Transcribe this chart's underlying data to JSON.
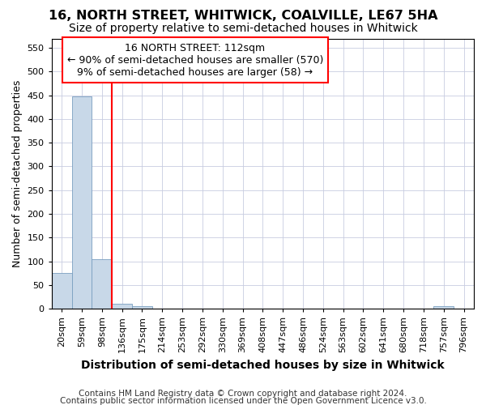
{
  "title": "16, NORTH STREET, WHITWICK, COALVILLE, LE67 5HA",
  "subtitle": "Size of property relative to semi-detached houses in Whitwick",
  "xlabel": "Distribution of semi-detached houses by size in Whitwick",
  "ylabel": "Number of semi-detached properties",
  "categories": [
    "20sqm",
    "59sqm",
    "98sqm",
    "136sqm",
    "175sqm",
    "214sqm",
    "253sqm",
    "292sqm",
    "330sqm",
    "369sqm",
    "408sqm",
    "447sqm",
    "486sqm",
    "524sqm",
    "563sqm",
    "602sqm",
    "641sqm",
    "680sqm",
    "718sqm",
    "757sqm",
    "796sqm"
  ],
  "bar_values": [
    75,
    447,
    105,
    10,
    5,
    0,
    0,
    0,
    0,
    0,
    0,
    0,
    0,
    0,
    0,
    0,
    0,
    0,
    0,
    5,
    0
  ],
  "bar_color": "#c8d8e8",
  "bar_edge_color": "#7a9fc0",
  "grid_color": "#c8cce0",
  "vline_x": 2.5,
  "vline_color": "red",
  "annotation_line1": "16 NORTH STREET: 112sqm",
  "annotation_line2": "← 90% of semi-detached houses are smaller (570)",
  "annotation_line3": "9% of semi-detached houses are larger (58) →",
  "annotation_box_color": "white",
  "annotation_box_edge": "red",
  "ylim": [
    0,
    570
  ],
  "yticks": [
    0,
    50,
    100,
    150,
    200,
    250,
    300,
    350,
    400,
    450,
    500,
    550
  ],
  "footer1": "Contains HM Land Registry data © Crown copyright and database right 2024.",
  "footer2": "Contains public sector information licensed under the Open Government Licence v3.0.",
  "background_color": "white",
  "title_fontsize": 11.5,
  "subtitle_fontsize": 10,
  "ylabel_fontsize": 9,
  "xlabel_fontsize": 10,
  "tick_fontsize": 8,
  "annotation_fontsize": 9,
  "footer_fontsize": 7.5
}
